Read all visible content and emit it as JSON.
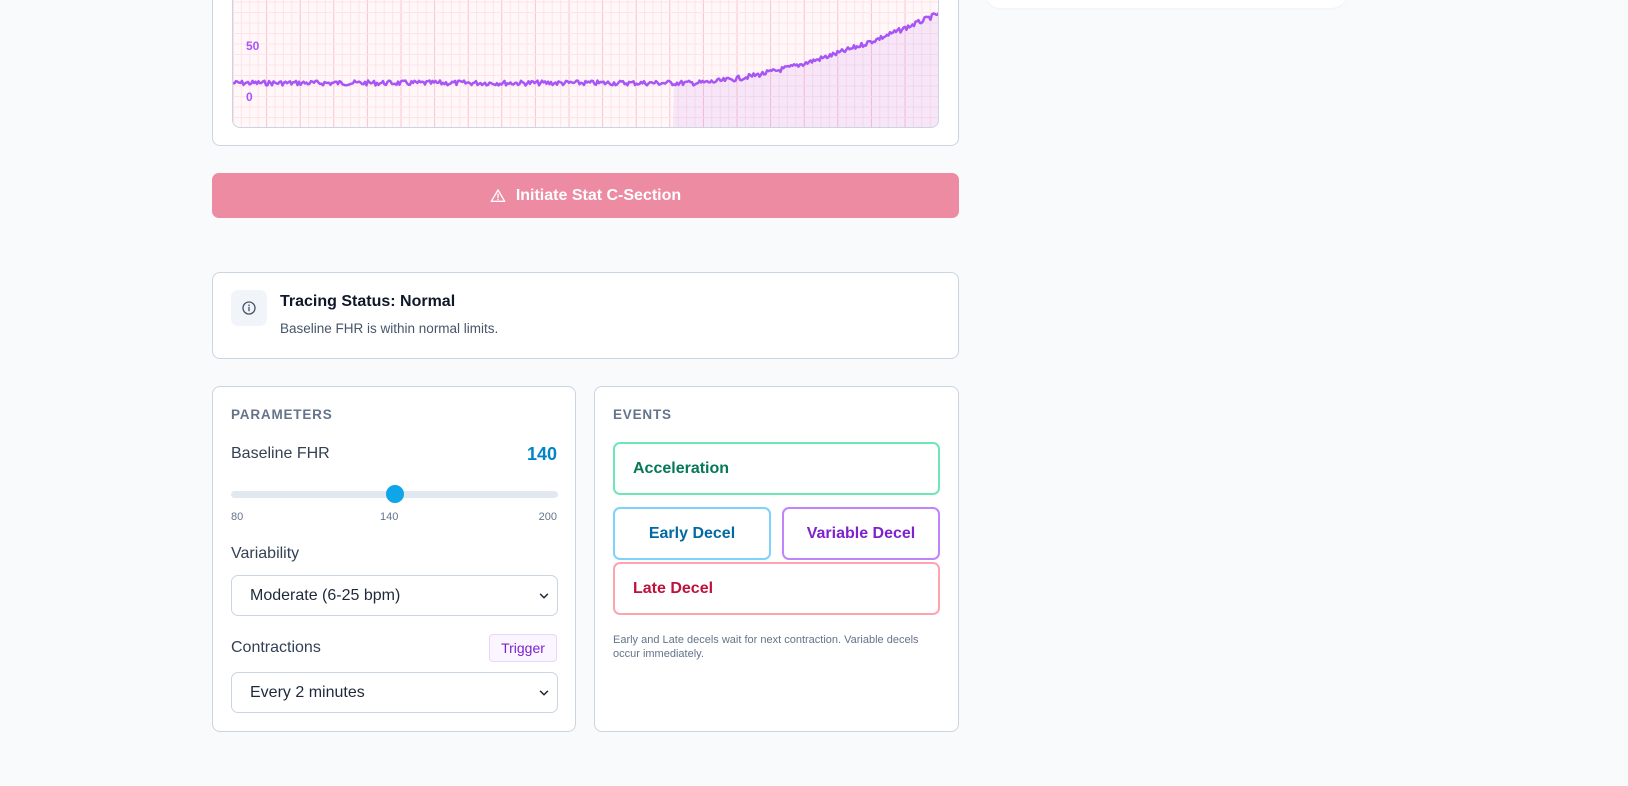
{
  "chart": {
    "y_ticks": [
      "50",
      "0"
    ],
    "line_color": "#a855f7"
  },
  "actions": {
    "stat_csection_label": "Initiate Stat C-Section",
    "stat_icon": "warning-triangle-icon"
  },
  "status": {
    "icon": "info-circle-icon",
    "title": "Tracing Status: Normal",
    "description": "Baseline FHR is within normal limits."
  },
  "parameters": {
    "heading": "PARAMETERS",
    "baseline": {
      "label": "Baseline FHR",
      "value": "140",
      "min": 80,
      "max": 200,
      "current": 140,
      "tick_min": "80",
      "tick_mid": "140",
      "tick_max": "200"
    },
    "variability": {
      "label": "Variability",
      "selected": "Moderate (6-25 bpm)"
    },
    "contractions": {
      "label": "Contractions",
      "trigger_label": "Trigger",
      "selected": "Every 2 minutes"
    }
  },
  "events": {
    "heading": "EVENTS",
    "acceleration": "Acceleration",
    "early_decel": "Early Decel",
    "variable_decel": "Variable Decel",
    "late_decel": "Late Decel",
    "note": "Early and Late decels wait for next contraction. Variable decels occur immediately."
  },
  "colors": {
    "accent": "#0284c7",
    "stat_button": "#ec8ba1",
    "acceleration": "#047857",
    "early": "#0369a1",
    "variable": "#7e22ce",
    "late": "#be123c"
  }
}
